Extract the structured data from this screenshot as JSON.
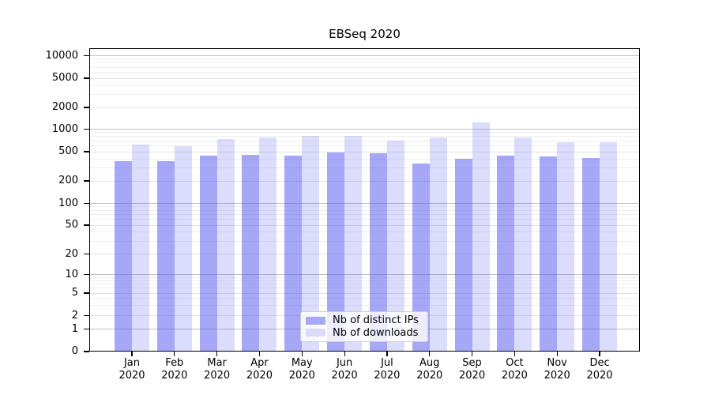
{
  "chart_data": {
    "type": "bar",
    "title": "EBSeq 2020",
    "x_tick_labels": [
      {
        "month": "Jan",
        "year": "2020"
      },
      {
        "month": "Feb",
        "year": "2020"
      },
      {
        "month": "Mar",
        "year": "2020"
      },
      {
        "month": "Apr",
        "year": "2020"
      },
      {
        "month": "May",
        "year": "2020"
      },
      {
        "month": "Jun",
        "year": "2020"
      },
      {
        "month": "Jul",
        "year": "2020"
      },
      {
        "month": "Aug",
        "year": "2020"
      },
      {
        "month": "Sep",
        "year": "2020"
      },
      {
        "month": "Oct",
        "year": "2020"
      },
      {
        "month": "Nov",
        "year": "2020"
      },
      {
        "month": "Dec",
        "year": "2020"
      }
    ],
    "series": [
      {
        "name": "Nb of distinct IPs",
        "color": "#a8a8f7",
        "values": [
          373,
          373,
          440,
          455,
          444,
          494,
          478,
          349,
          398,
          445,
          433,
          412
        ]
      },
      {
        "name": "Nb of downloads",
        "color": "#dcdcfa",
        "values": [
          617,
          587,
          734,
          766,
          808,
          805,
          703,
          770,
          1225,
          766,
          665,
          665
        ]
      }
    ],
    "y_axis": {
      "scale": "symlog",
      "tick_values": [
        0,
        1,
        2,
        5,
        10,
        20,
        50,
        100,
        200,
        500,
        1000,
        2000,
        5000,
        10000
      ],
      "top_value": 12500
    },
    "grid": true,
    "legend_position": "bottom-center",
    "colors": {
      "grid_minor": "#eeeeee",
      "grid_major": "#e2e2e2",
      "grid_power_of_ten": "#c0c0c0",
      "axis": "#000000"
    }
  }
}
